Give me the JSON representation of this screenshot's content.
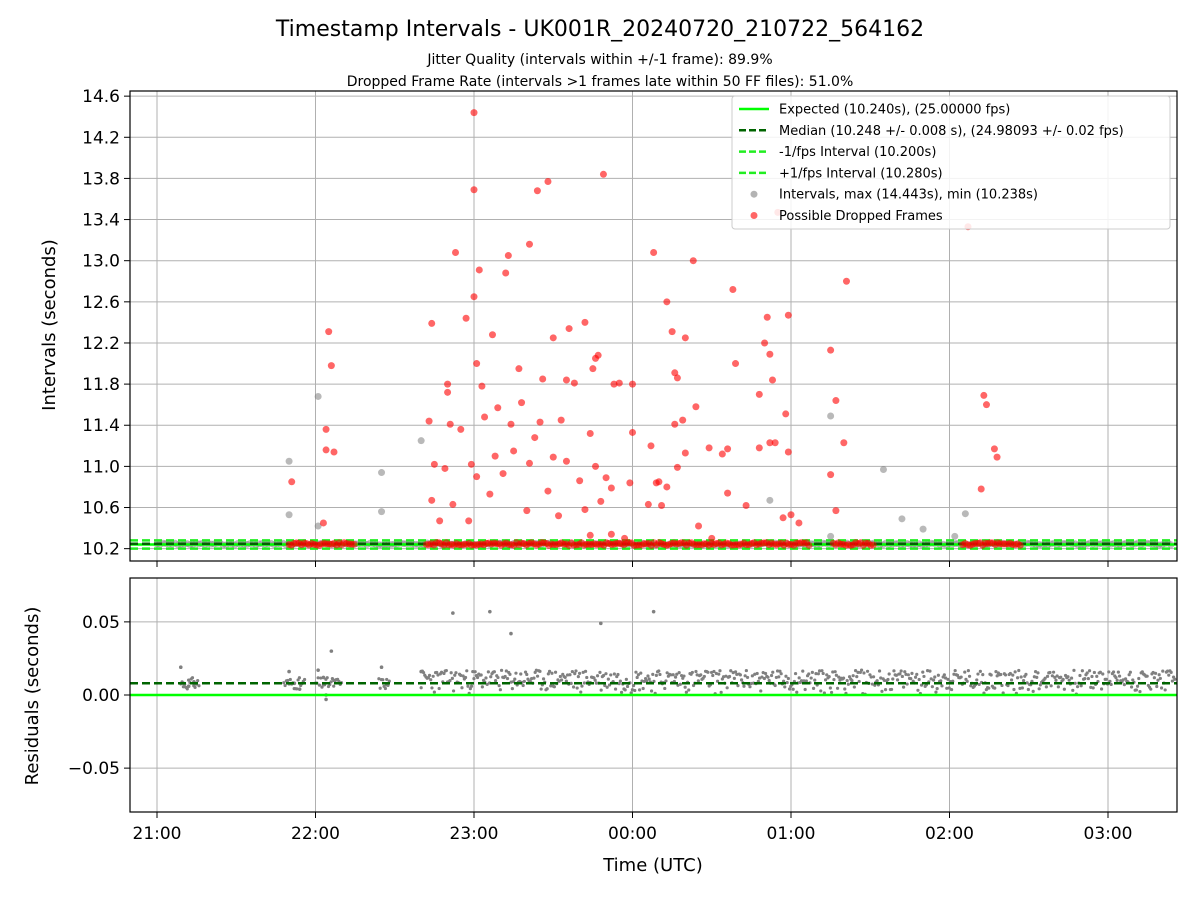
{
  "figure": {
    "title": "Timestamp Intervals - UK001R_20240720_210722_564162",
    "subtitle_1": "Jitter Quality (intervals within +/-1 frame): 89.9%",
    "subtitle_2": "Dropped Frame Rate (intervals >1 frames late within 50 FF files): 51.0%"
  },
  "chart_data": [
    {
      "type": "scatter",
      "panel": "intervals",
      "xlabel": "",
      "ylabel": "Intervals (seconds)",
      "x_type": "time",
      "x_ticks": [
        "21:00",
        "22:00",
        "23:00",
        "00:00",
        "01:00",
        "02:00",
        "03:00"
      ],
      "ylim": [
        10.08,
        14.65
      ],
      "y_ticks": [
        10.2,
        10.6,
        11.0,
        11.4,
        11.8,
        12.2,
        12.6,
        13.0,
        13.4,
        13.8,
        14.2,
        14.6
      ],
      "grid": true,
      "legend_position": "top-right",
      "lines": [
        {
          "name": "Expected (10.240s), (25.00000 fps)",
          "y": 10.24,
          "style": "solid",
          "color": "#00ff00"
        },
        {
          "name": "Median (10.248 +/- 0.008 s), (24.98093 +/- 0.02 fps)",
          "y": 10.248,
          "style": "dashed",
          "color": "#006400"
        },
        {
          "name": "-1/fps Interval (10.200s)",
          "y": 10.2,
          "style": "dashed",
          "color": "#22ee22"
        },
        {
          "name": "+1/fps Interval (10.280s)",
          "y": 10.28,
          "style": "dashed",
          "color": "#22ee22"
        }
      ],
      "series": [
        {
          "name": "Intervals, max (14.443s), min (10.238s)",
          "color": "#808080",
          "points": [
            [
              "21:50",
              11.05
            ],
            [
              "21:50",
              10.53
            ],
            [
              "22:01",
              11.68
            ],
            [
              "22:01",
              10.42
            ],
            [
              "22:25",
              10.94
            ],
            [
              "22:25",
              10.56
            ],
            [
              "22:40",
              11.25
            ],
            [
              "00:52",
              10.67
            ],
            [
              "01:15",
              11.49
            ],
            [
              "01:15",
              10.32
            ],
            [
              "01:35",
              10.97
            ],
            [
              "01:42",
              10.49
            ],
            [
              "01:50",
              10.39
            ],
            [
              "02:02",
              10.32
            ],
            [
              "02:06",
              10.54
            ]
          ]
        },
        {
          "name": "Possible Dropped Frames",
          "color": "#ff0000",
          "points": [
            [
              "21:51",
              10.85
            ],
            [
              "22:03",
              10.45
            ],
            [
              "22:04",
              11.36
            ],
            [
              "22:04",
              11.16
            ],
            [
              "22:05",
              12.31
            ],
            [
              "22:06",
              11.98
            ],
            [
              "22:07",
              11.14
            ],
            [
              "22:43",
              11.44
            ],
            [
              "22:44",
              12.39
            ],
            [
              "22:45",
              11.02
            ],
            [
              "22:44",
              10.67
            ],
            [
              "22:47",
              10.47
            ],
            [
              "22:50",
              11.72
            ],
            [
              "22:51",
              11.41
            ],
            [
              "22:53",
              13.08
            ],
            [
              "22:57",
              12.44
            ],
            [
              "23:00",
              14.44
            ],
            [
              "23:00",
              13.69
            ],
            [
              "23:00",
              12.65
            ],
            [
              "23:01",
              12.0
            ],
            [
              "23:02",
              12.91
            ],
            [
              "23:03",
              11.78
            ],
            [
              "23:07",
              12.28
            ],
            [
              "23:08",
              11.1
            ],
            [
              "23:12",
              12.88
            ],
            [
              "23:13",
              13.05
            ],
            [
              "23:17",
              11.95
            ],
            [
              "23:21",
              13.16
            ],
            [
              "23:24",
              13.68
            ],
            [
              "23:28",
              13.77
            ],
            [
              "23:30",
              12.25
            ],
            [
              "23:35",
              11.84
            ],
            [
              "23:42",
              12.4
            ],
            [
              "23:45",
              11.95
            ],
            [
              "23:46",
              12.05
            ],
            [
              "23:47",
              12.08
            ],
            [
              "23:49",
              13.84
            ],
            [
              "23:53",
              11.8
            ],
            [
              "23:59",
              10.84
            ],
            [
              "00:00",
              11.33
            ],
            [
              "00:00",
              11.8
            ],
            [
              "00:07",
              11.2
            ],
            [
              "00:08",
              13.08
            ],
            [
              "00:09",
              10.84
            ],
            [
              "00:13",
              12.6
            ],
            [
              "00:15",
              12.31
            ],
            [
              "00:16",
              11.91
            ],
            [
              "00:17",
              11.86
            ],
            [
              "00:20",
              12.25
            ],
            [
              "00:23",
              13.0
            ],
            [
              "00:25",
              10.42
            ],
            [
              "00:29",
              11.18
            ],
            [
              "00:34",
              11.12
            ],
            [
              "00:36",
              10.74
            ],
            [
              "00:38",
              12.72
            ],
            [
              "00:39",
              12.0
            ],
            [
              "00:43",
              10.62
            ],
            [
              "00:48",
              11.18
            ],
            [
              "00:50",
              12.2
            ],
            [
              "00:51",
              12.45
            ],
            [
              "00:52",
              12.09
            ],
            [
              "00:53",
              11.84
            ],
            [
              "00:54",
              11.23
            ],
            [
              "00:55",
              13.47
            ],
            [
              "00:58",
              11.51
            ],
            [
              "00:59",
              11.14
            ],
            [
              "00:59",
              12.47
            ],
            [
              "01:00",
              10.53
            ],
            [
              "01:03",
              10.45
            ],
            [
              "01:15",
              12.13
            ],
            [
              "01:15",
              10.92
            ],
            [
              "01:17",
              11.64
            ],
            [
              "01:17",
              10.57
            ],
            [
              "01:20",
              11.23
            ],
            [
              "01:21",
              12.8
            ],
            [
              "02:12",
              10.78
            ],
            [
              "02:13",
              11.69
            ],
            [
              "02:14",
              11.6
            ],
            [
              "02:17",
              11.17
            ],
            [
              "02:18",
              11.09
            ],
            [
              "02:07",
              13.33
            ],
            [
              "00:48",
              11.7
            ],
            [
              "00:52",
              11.23
            ],
            [
              "00:57",
              10.5
            ],
            [
              "00:36",
              11.17
            ],
            [
              "00:24",
              11.58
            ],
            [
              "00:19",
              11.45
            ],
            [
              "00:11",
              10.62
            ],
            [
              "00:13",
              10.8
            ],
            [
              "00:16",
              11.41
            ],
            [
              "00:17",
              10.99
            ],
            [
              "00:20",
              11.13
            ],
            [
              "00:06",
              10.63
            ],
            [
              "23:55",
              11.81
            ],
            [
              "23:52",
              10.79
            ],
            [
              "23:50",
              10.89
            ],
            [
              "23:48",
              10.66
            ],
            [
              "23:46",
              11.0
            ],
            [
              "23:44",
              11.32
            ],
            [
              "23:40",
              10.86
            ],
            [
              "23:38",
              11.81
            ],
            [
              "23:35",
              11.05
            ],
            [
              "23:33",
              11.45
            ],
            [
              "23:30",
              11.09
            ],
            [
              "23:28",
              10.76
            ],
            [
              "23:25",
              11.43
            ],
            [
              "23:23",
              11.28
            ],
            [
              "23:21",
              11.03
            ],
            [
              "23:20",
              10.57
            ],
            [
              "23:18",
              11.62
            ],
            [
              "23:15",
              11.15
            ],
            [
              "23:14",
              11.41
            ],
            [
              "23:11",
              10.93
            ],
            [
              "23:09",
              11.57
            ],
            [
              "23:06",
              10.73
            ],
            [
              "23:04",
              11.48
            ],
            [
              "23:01",
              10.9
            ],
            [
              "22:59",
              11.02
            ],
            [
              "22:58",
              10.47
            ],
            [
              "22:55",
              11.36
            ],
            [
              "22:52",
              10.63
            ],
            [
              "22:50",
              11.8
            ],
            [
              "22:49",
              10.98
            ],
            [
              "23:26",
              11.85
            ],
            [
              "23:32",
              10.52
            ],
            [
              "23:36",
              12.34
            ],
            [
              "23:42",
              10.58
            ],
            [
              "23:44",
              10.33
            ],
            [
              "23:52",
              10.34
            ],
            [
              "23:57",
              10.3
            ],
            [
              "00:10",
              10.85
            ],
            [
              "00:30",
              10.3
            ]
          ]
        }
      ],
      "band_series": [
        {
          "name": "Intervals (normal)",
          "color": "#808080",
          "x_range": [
            "21:00",
            "03:30"
          ],
          "y": 10.245
        },
        {
          "name": "Possible Dropped Frames (dense)",
          "color": "#ff0000",
          "x_ranges": [
            [
              "21:50",
              "22:15"
            ],
            [
              "22:42",
              "01:07"
            ],
            [
              "01:16",
              "01:32"
            ],
            [
              "02:05",
              "02:27"
            ]
          ],
          "y": 10.245
        }
      ]
    },
    {
      "type": "scatter",
      "panel": "residuals",
      "xlabel": "Time (UTC)",
      "ylabel": "Residuals (seconds)",
      "x_type": "time",
      "x_ticks": [
        "21:00",
        "22:00",
        "23:00",
        "00:00",
        "01:00",
        "02:00",
        "03:00"
      ],
      "ylim": [
        -0.08,
        0.08
      ],
      "y_ticks": [
        -0.05,
        0.0,
        0.05
      ],
      "y_tick_labels": [
        "−0.05",
        "0.00",
        "0.05"
      ],
      "grid": true,
      "lines": [
        {
          "name": "expected",
          "y": 0.0,
          "style": "solid",
          "color": "#00ff00"
        },
        {
          "name": "median",
          "y": 0.008,
          "style": "dashed",
          "color": "#006400"
        }
      ],
      "series": [
        {
          "name": "residuals",
          "color": "#808080",
          "points": [
            [
              "21:09",
              0.019
            ],
            [
              "21:10",
              0.008
            ],
            [
              "21:12",
              0.006
            ],
            [
              "21:14",
              0.009
            ],
            [
              "21:50",
              0.016
            ],
            [
              "21:52",
              0.008
            ],
            [
              "21:54",
              0.004
            ],
            [
              "22:01",
              0.017
            ],
            [
              "22:03",
              0.012
            ],
            [
              "22:04",
              0.0
            ],
            [
              "22:04",
              -0.003
            ],
            [
              "22:06",
              0.03
            ],
            [
              "22:07",
              0.01
            ],
            [
              "22:25",
              0.019
            ],
            [
              "22:27",
              0.007
            ],
            [
              "22:40",
              0.016
            ],
            [
              "22:52",
              0.056
            ],
            [
              "23:06",
              0.057
            ],
            [
              "23:14",
              0.042
            ],
            [
              "23:48",
              0.049
            ],
            [
              "00:08",
              0.057
            ]
          ],
          "dense_band": {
            "x_range": [
              "22:40",
              "03:30"
            ],
            "y_range": [
              0.0,
              0.017
            ]
          }
        }
      ]
    }
  ],
  "legend": {
    "items": [
      {
        "label": "Expected (10.240s), (25.00000 fps)",
        "marker": "solid-line",
        "color": "#00ff00"
      },
      {
        "label": "Median (10.248 +/- 0.008 s), (24.98093 +/- 0.02 fps)",
        "marker": "dashed-line",
        "color": "#006400"
      },
      {
        "label": "-1/fps Interval (10.200s)",
        "marker": "dashed-line",
        "color": "#22ee22"
      },
      {
        "label": "+1/fps Interval (10.280s)",
        "marker": "dashed-line",
        "color": "#22ee22"
      },
      {
        "label": "Intervals, max (14.443s), min (10.238s)",
        "marker": "dot",
        "color": "#808080"
      },
      {
        "label": "Possible Dropped Frames",
        "marker": "dot",
        "color": "#ff0000"
      }
    ]
  }
}
